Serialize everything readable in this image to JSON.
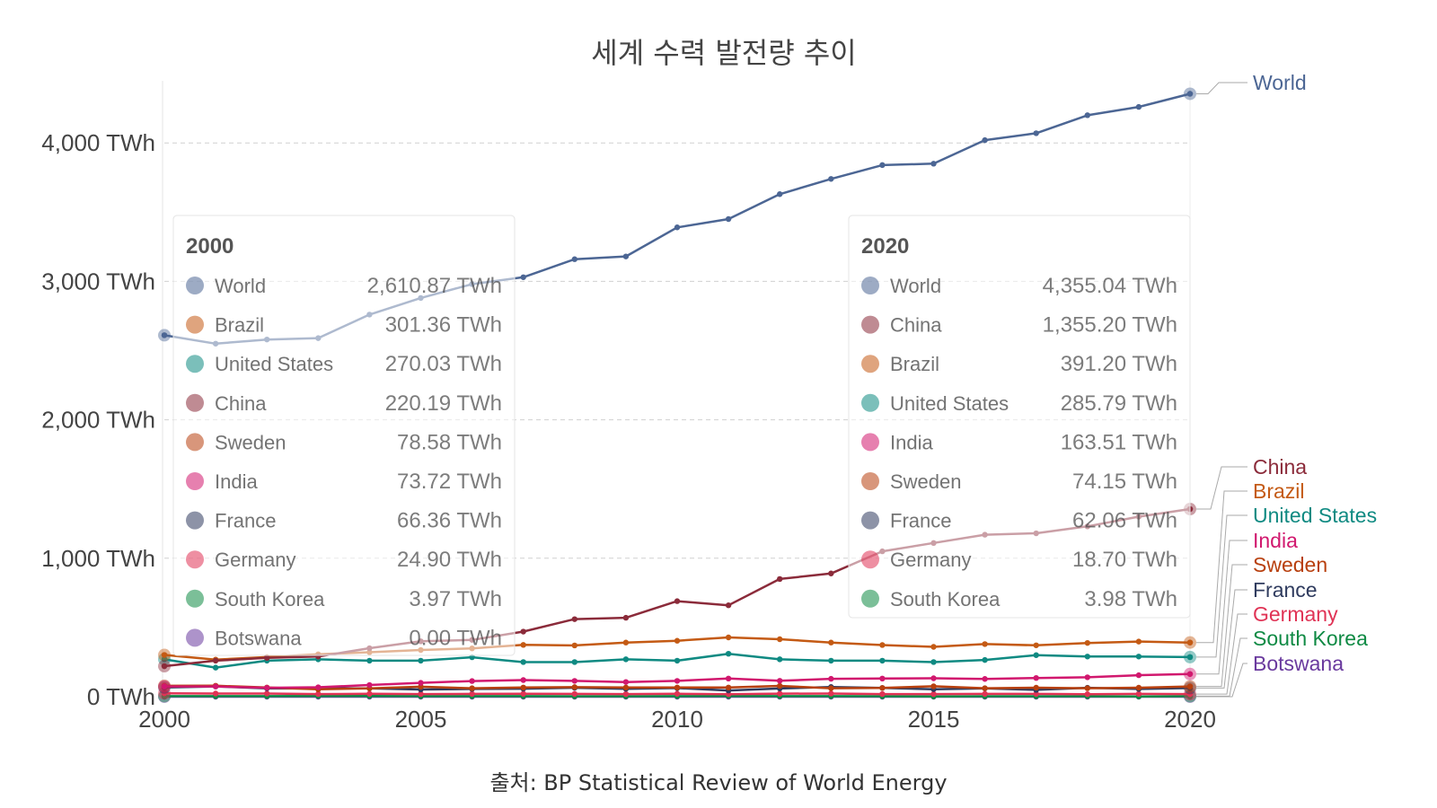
{
  "chart_data": {
    "type": "line",
    "title": "세계 수력 발전량 추이",
    "source": "출처: BP Statistical Review of World Energy",
    "x": [
      2000,
      2001,
      2002,
      2003,
      2004,
      2005,
      2006,
      2007,
      2008,
      2009,
      2010,
      2011,
      2012,
      2013,
      2014,
      2015,
      2016,
      2017,
      2018,
      2019,
      2020
    ],
    "x_ticks": [
      2000,
      2005,
      2010,
      2015,
      2020
    ],
    "x_tick_labels": [
      "2000",
      "2005",
      "2010",
      "2015",
      "2020"
    ],
    "xlim": [
      2000,
      2020
    ],
    "y_ticks": [
      0,
      1000,
      2000,
      3000,
      4000
    ],
    "y_tick_labels": [
      "0 TWh",
      "1,000 TWh",
      "2,000 TWh",
      "3,000 TWh",
      "4,000 TWh"
    ],
    "ylim": [
      0,
      4400
    ],
    "unit": "TWh",
    "grid": true,
    "series": [
      {
        "name": "World",
        "color": "#4c6694",
        "values": [
          2610.87,
          2550,
          2580,
          2590,
          2760,
          2880,
          2980,
          3030,
          3160,
          3180,
          3390,
          3450,
          3630,
          3740,
          3840,
          3850,
          4020,
          4070,
          4200,
          4260,
          4355.04
        ]
      },
      {
        "name": "China",
        "color": "#8b2b3a",
        "values": [
          220.19,
          260,
          280,
          290,
          350,
          400,
          410,
          470,
          560,
          570,
          690,
          660,
          850,
          890,
          1050,
          1110,
          1170,
          1180,
          1230,
          1300,
          1355.2
        ]
      },
      {
        "name": "Brazil",
        "color": "#c45a14",
        "values": [
          301.36,
          268,
          286,
          306,
          321,
          337,
          349,
          374,
          370,
          391,
          404,
          428,
          415,
          391,
          373,
          360,
          380,
          371,
          388,
          398,
          391.2
        ]
      },
      {
        "name": "United States",
        "color": "#0f8a82",
        "values": [
          270.03,
          210,
          260,
          270,
          260,
          260,
          285,
          250,
          250,
          270,
          260,
          310,
          270,
          260,
          260,
          250,
          265,
          300,
          290,
          290,
          285.79
        ]
      },
      {
        "name": "India",
        "color": "#d1186e",
        "values": [
          73.72,
          74,
          64,
          68,
          84,
          100,
          113,
          120,
          114,
          106,
          114,
          131,
          115,
          129,
          131,
          133,
          128,
          135,
          140,
          155,
          163.51
        ]
      },
      {
        "name": "Sweden",
        "color": "#b8400f",
        "values": [
          78.58,
          79,
          66,
          53,
          60,
          72,
          61,
          66,
          69,
          66,
          66,
          66,
          78,
          61,
          63,
          75,
          61,
          65,
          61,
          65,
          74.15
        ]
      },
      {
        "name": "France",
        "color": "#2f3b5e",
        "values": [
          66.36,
          74,
          60,
          59,
          60,
          52,
          56,
          58,
          64,
          57,
          62,
          45,
          59,
          70,
          63,
          54,
          60,
          49,
          64,
          56,
          62.06
        ]
      },
      {
        "name": "Germany",
        "color": "#e03355",
        "values": [
          24.9,
          23,
          23,
          19,
          21,
          19,
          20,
          21,
          20,
          19,
          21,
          18,
          22,
          23,
          19,
          19,
          20,
          20,
          18,
          20,
          18.7
        ]
      },
      {
        "name": "South Korea",
        "color": "#0f8a44",
        "values": [
          3.97,
          4,
          4,
          5,
          5,
          4,
          4,
          4,
          3,
          3,
          4,
          5,
          4,
          4,
          3,
          2,
          3,
          3,
          3,
          2,
          3.98
        ]
      },
      {
        "name": "Botswana",
        "color": "#6a3a9e",
        "values": [
          0,
          0,
          0,
          0,
          0,
          0,
          0,
          0,
          0,
          0,
          0,
          0,
          0,
          0,
          0,
          0,
          0,
          0,
          0,
          0,
          0
        ]
      }
    ]
  },
  "tooltip_start": {
    "year": "2000",
    "rows": [
      {
        "name": "World",
        "value": "2,610.87 TWh",
        "color": "#4c6694"
      },
      {
        "name": "Brazil",
        "value": "301.36 TWh",
        "color": "#c45a14"
      },
      {
        "name": "United States",
        "value": "270.03 TWh",
        "color": "#0f8a82"
      },
      {
        "name": "China",
        "value": "220.19 TWh",
        "color": "#8b2b3a"
      },
      {
        "name": "Sweden",
        "value": "78.58 TWh",
        "color": "#b8400f"
      },
      {
        "name": "India",
        "value": "73.72 TWh",
        "color": "#d1186e"
      },
      {
        "name": "France",
        "value": "66.36 TWh",
        "color": "#2f3b5e"
      },
      {
        "name": "Germany",
        "value": "24.90 TWh",
        "color": "#e03355"
      },
      {
        "name": "South Korea",
        "value": "3.97 TWh",
        "color": "#0f8a44"
      },
      {
        "name": "Botswana",
        "value": "0.00 TWh",
        "color": "#6a3a9e"
      }
    ]
  },
  "tooltip_end": {
    "year": "2020",
    "rows": [
      {
        "name": "World",
        "value": "4,355.04 TWh",
        "color": "#4c6694"
      },
      {
        "name": "China",
        "value": "1,355.20 TWh",
        "color": "#8b2b3a"
      },
      {
        "name": "Brazil",
        "value": "391.20 TWh",
        "color": "#c45a14"
      },
      {
        "name": "United States",
        "value": "285.79 TWh",
        "color": "#0f8a82"
      },
      {
        "name": "India",
        "value": "163.51 TWh",
        "color": "#d1186e"
      },
      {
        "name": "Sweden",
        "value": "74.15 TWh",
        "color": "#b8400f"
      },
      {
        "name": "France",
        "value": "62.06 TWh",
        "color": "#2f3b5e"
      },
      {
        "name": "Germany",
        "value": "18.70 TWh",
        "color": "#e03355"
      },
      {
        "name": "South Korea",
        "value": "3.98 TWh",
        "color": "#0f8a44"
      }
    ]
  }
}
